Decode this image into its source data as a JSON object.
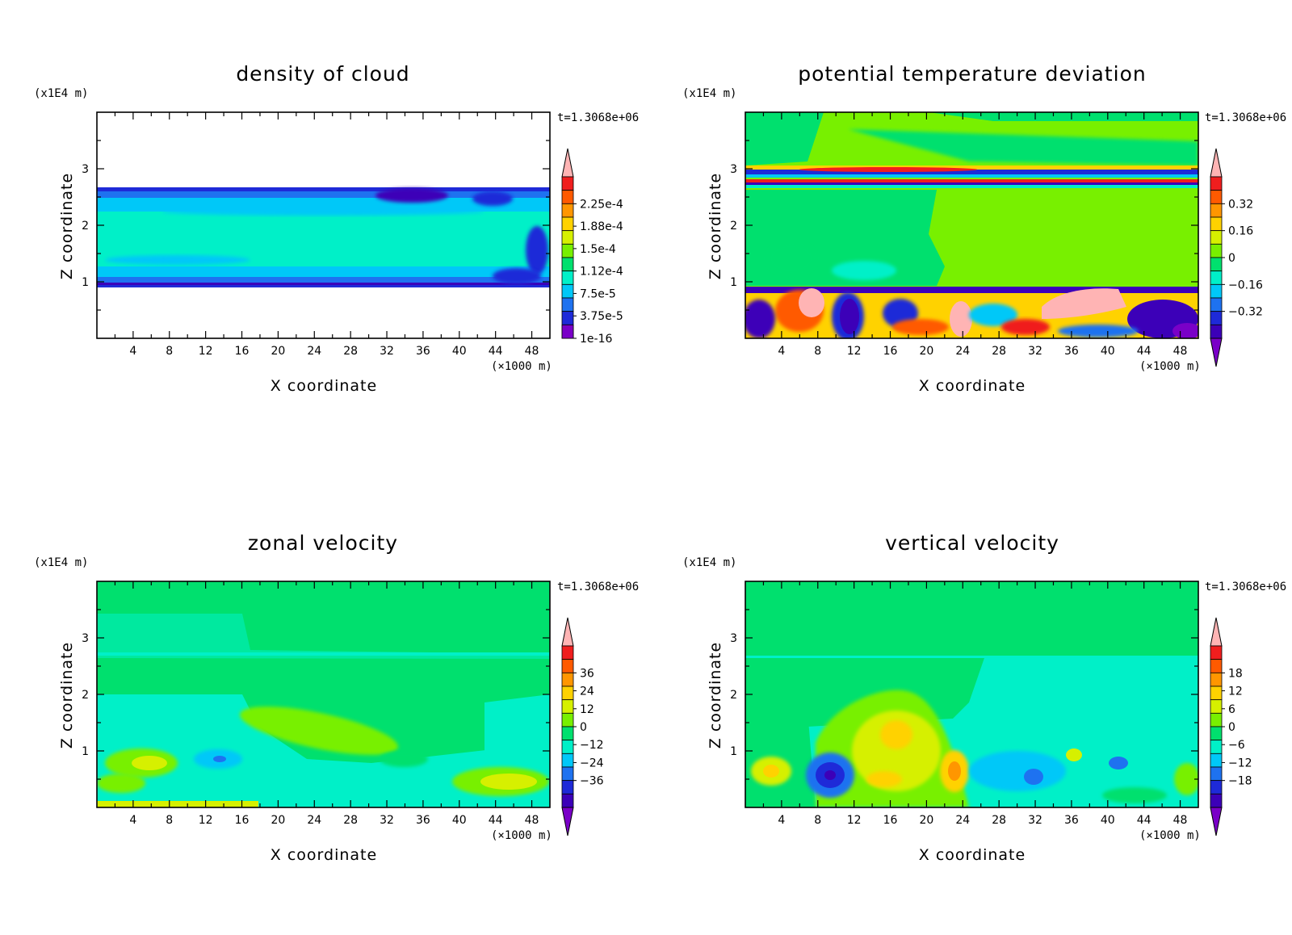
{
  "figure": {
    "time_label": "t=1.3068e+06",
    "x_unit": "(×1000 m)",
    "z_unit": "(x1E4 m)",
    "xlabel": "X coordinate",
    "ylabel": "Z coordinate"
  },
  "palette": [
    "#7a00c8",
    "#3c00b8",
    "#1e2ad8",
    "#1e72f0",
    "#00c8f8",
    "#00f0c8",
    "#00e06e",
    "#78f000",
    "#d6f000",
    "#ffd200",
    "#ff9600",
    "#ff5a00",
    "#f01e1e",
    "#ffb4b4"
  ],
  "chart_data": [
    {
      "type": "heatmap",
      "title": "density of cloud",
      "xlabel": "X coordinate",
      "ylabel": "Z coordinate",
      "x_unit": "(×1000 m)",
      "z_unit": "(x1E4 m)",
      "x_ticks": [
        4,
        8,
        12,
        16,
        20,
        24,
        28,
        32,
        36,
        40,
        44,
        48
      ],
      "z_ticks": [
        1,
        2,
        3
      ],
      "xlim": [
        0,
        50
      ],
      "zlim": [
        0,
        4
      ],
      "colorbar_labels": [
        "2.25e-4",
        "1.88e-4",
        "1.5e-4",
        "1.12e-4",
        "7.5e-5",
        "3.75e-5",
        "1e-16"
      ],
      "colorbar_min_arrow": false,
      "cloud_layer_z": [
        0.9,
        2.65
      ]
    },
    {
      "type": "heatmap",
      "title": "potential temperature deviation",
      "xlabel": "X coordinate",
      "ylabel": "Z coordinate",
      "x_unit": "(×1000 m)",
      "z_unit": "(x1E4 m)",
      "x_ticks": [
        4,
        8,
        12,
        16,
        20,
        24,
        28,
        32,
        36,
        40,
        44,
        48
      ],
      "z_ticks": [
        1,
        2,
        3
      ],
      "xlim": [
        0,
        50
      ],
      "zlim": [
        0,
        4
      ],
      "colorbar_labels": [
        "0.32",
        "0.16",
        "0",
        "-0.16",
        "-0.32"
      ],
      "colorbar_min_arrow": true
    },
    {
      "type": "heatmap",
      "title": "zonal velocity",
      "xlabel": "X coordinate",
      "ylabel": "Z coordinate",
      "x_unit": "(×1000 m)",
      "z_unit": "(x1E4 m)",
      "x_ticks": [
        4,
        8,
        12,
        16,
        20,
        24,
        28,
        32,
        36,
        40,
        44,
        48
      ],
      "z_ticks": [
        1,
        2,
        3
      ],
      "xlim": [
        0,
        50
      ],
      "zlim": [
        0,
        4
      ],
      "colorbar_labels": [
        "36",
        "24",
        "12",
        "0",
        "-12",
        "-24",
        "-36"
      ],
      "colorbar_min_arrow": true
    },
    {
      "type": "heatmap",
      "title": "vertical velocity",
      "xlabel": "X coordinate",
      "ylabel": "Z coordinate",
      "x_unit": "(×1000 m)",
      "z_unit": "(x1E4 m)",
      "x_ticks": [
        4,
        8,
        12,
        16,
        20,
        24,
        28,
        32,
        36,
        40,
        44,
        48
      ],
      "z_ticks": [
        1,
        2,
        3
      ],
      "xlim": [
        0,
        50
      ],
      "zlim": [
        0,
        4
      ],
      "colorbar_labels": [
        "18",
        "12",
        "6",
        "0",
        "-6",
        "-12",
        "-18"
      ],
      "colorbar_min_arrow": true
    }
  ]
}
